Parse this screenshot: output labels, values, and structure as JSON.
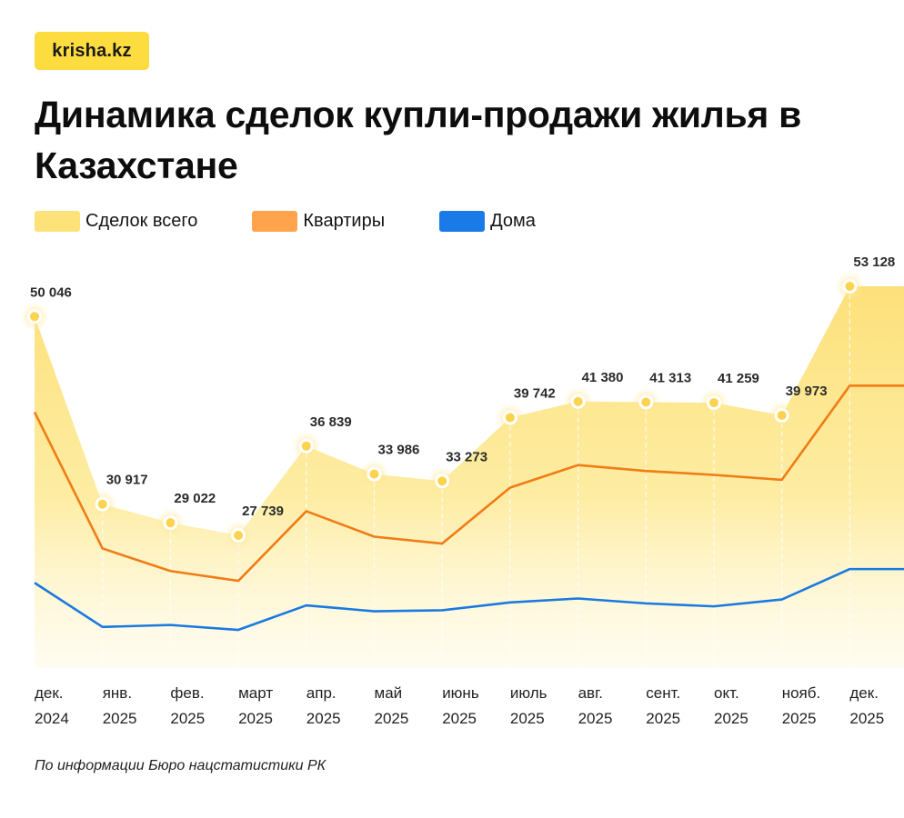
{
  "brand": {
    "logo_text": "krisha.kz",
    "color": "#fddc3f"
  },
  "title": "Динамика сделок купли-продажи жилья в Казахстане",
  "source": "По информации Бюро нацстатистики РК",
  "chart_data": {
    "type": "line",
    "title": "Динамика сделок купли-продажи жилья в Казахстане",
    "xlabel": "",
    "ylabel": "",
    "grid": false,
    "legend_position": "top-left",
    "categories": [
      [
        "дек.",
        "2024"
      ],
      [
        "янв.",
        "2025"
      ],
      [
        "фев.",
        "2025"
      ],
      [
        "март",
        "2025"
      ],
      [
        "апр.",
        "2025"
      ],
      [
        "май",
        "2025"
      ],
      [
        "июнь",
        "2025"
      ],
      [
        "июль",
        "2025"
      ],
      [
        "авг.",
        "2025"
      ],
      [
        "сент.",
        "2025"
      ],
      [
        "окт.",
        "2025"
      ],
      [
        "нояб.",
        "2025"
      ],
      [
        "дек.",
        "2025"
      ]
    ],
    "ylim": [
      15000,
      53128
    ],
    "series": [
      {
        "name": "Сделок всего",
        "kind": "area",
        "color": "#fde27a",
        "values": [
          50046,
          30917,
          29022,
          27739,
          36839,
          33986,
          33273,
          39742,
          41380,
          41313,
          41259,
          39973,
          53128
        ],
        "labels": [
          "50 046",
          "30 917",
          "29 022",
          "27 739",
          "36 839",
          "33 986",
          "33 273",
          "39 742",
          "41 380",
          "41 313",
          "41 259",
          "39 973",
          "53 128"
        ]
      },
      {
        "name": "Квартиры",
        "kind": "line",
        "color": "#f07d16",
        "legend_color": "#ffa44d",
        "values": [
          40300,
          26400,
          24100,
          23100,
          30200,
          27600,
          26900,
          32600,
          34900,
          34300,
          33900,
          33400,
          43000
        ],
        "estimated": true
      },
      {
        "name": "Дома",
        "kind": "line",
        "color": "#1a7ae0",
        "legend_color": "#1a7ae8",
        "values": [
          22900,
          18400,
          18600,
          18100,
          20600,
          20000,
          20100,
          20900,
          21300,
          20800,
          20500,
          21200,
          24300
        ],
        "estimated": true
      }
    ]
  }
}
